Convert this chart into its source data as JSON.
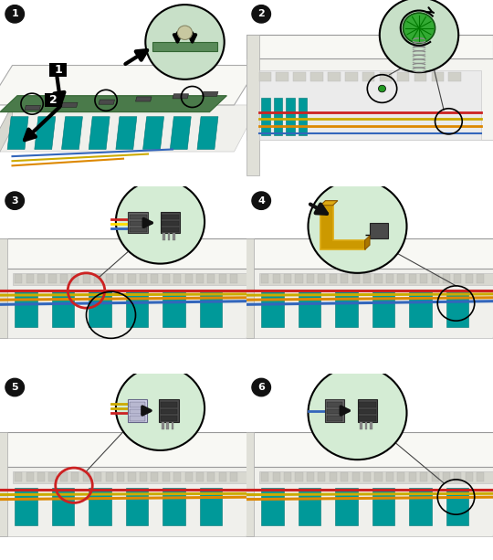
{
  "figure_width": 5.4,
  "figure_height": 6.13,
  "dpi": 100,
  "bg": "#ffffff",
  "panel_bg": "#ffffff",
  "border_color": "#000000",
  "chassis_top": "#f0f0ec",
  "chassis_side": "#dcdcd4",
  "chassis_front": "#e8e8e0",
  "board_main": "#eaeae2",
  "board_side": "#d8d8d0",
  "pcb_green": "#4a7a4a",
  "pcb_green2": "#5a8a5a",
  "highlight_green": "#b8d8b8",
  "arrow_black": "#111111",
  "connector_dark": "#4a4a4a",
  "connector_mid": "#666666",
  "connector_light": "#888888",
  "cable_red": "#cc2222",
  "cable_yellow": "#ccaa00",
  "cable_orange": "#dd8800",
  "cable_blue": "#3366bb",
  "cable_white": "#e8e8e8",
  "memory_teal": "#009999",
  "memory_teal2": "#007777",
  "screw_green": "#229922",
  "screw_green2": "#33aa33",
  "bracket_gold": "#cc9900",
  "bracket_gold2": "#ddaa11",
  "circle_bg": "#c8e0c8",
  "circle_bg2": "#d4ecd4",
  "step_bg": "#111111",
  "step_fg": "#ffffff",
  "callout_line": "#555555",
  "metal_gray": "#aaaaaa",
  "metal_light": "#cccccc",
  "chassis_stripe": "#d0d0c8",
  "red_circle": "#cc2222",
  "slot_dark": "#333333",
  "slot_light": "#666666"
}
